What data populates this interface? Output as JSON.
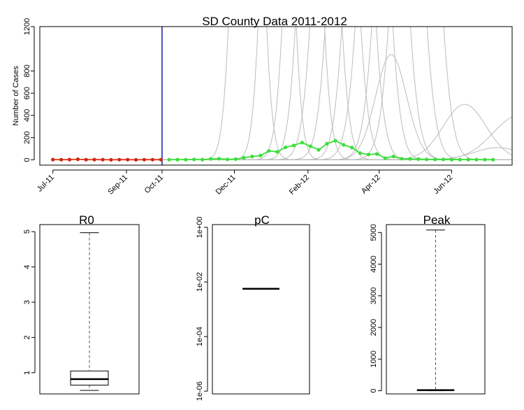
{
  "chart_data": [
    {
      "type": "line",
      "title": "SD County Data 2011-2012",
      "xlabel": "",
      "ylabel": "Number of Cases",
      "ylim": [
        0,
        1200
      ],
      "yticks": [
        "0",
        "200",
        "400",
        "600",
        "800",
        "1200"
      ],
      "yticks_values": [
        0,
        200,
        400,
        600,
        800,
        1200
      ],
      "xlim": [
        "2011-06-20",
        "2012-07-22"
      ],
      "xticks": [
        {
          "label": "Jul-11",
          "date": "2011-07-01"
        },
        {
          "label": "Sep-11",
          "date": "2011-09-01"
        },
        {
          "label": "Oct-11",
          "date": "2011-10-01"
        },
        {
          "label": "Dec-11",
          "date": "2011-12-01"
        },
        {
          "label": "Feb-12",
          "date": "2012-02-01"
        },
        {
          "label": "Apr-12",
          "date": "2012-04-01"
        },
        {
          "label": "Jun-12",
          "date": "2012-06-01"
        }
      ],
      "cutoff_line": {
        "date": "2011-10-01",
        "color": "#1a1aa8"
      },
      "series": [
        {
          "role": "observed-before-cutoff",
          "color": "#e8301c",
          "dot_color": "#cc2a10",
          "x": [
            "2011-07-01",
            "2011-07-08",
            "2011-07-15",
            "2011-07-22",
            "2011-07-29",
            "2011-08-05",
            "2011-08-12",
            "2011-08-19",
            "2011-08-26",
            "2011-09-02",
            "2011-09-09",
            "2011-09-16",
            "2011-09-23",
            "2011-09-30"
          ],
          "y": [
            2,
            1,
            2,
            5,
            1,
            2,
            1,
            0,
            1,
            1,
            0,
            1,
            1,
            1
          ]
        },
        {
          "role": "observed-after-cutoff",
          "color": "#39e03a",
          "dot_color": "#39e03a",
          "x": [
            "2011-10-07",
            "2011-10-14",
            "2011-10-21",
            "2011-10-28",
            "2011-11-04",
            "2011-11-11",
            "2011-11-18",
            "2011-11-25",
            "2011-12-02",
            "2011-12-09",
            "2011-12-16",
            "2011-12-23",
            "2011-12-30",
            "2012-01-06",
            "2012-01-13",
            "2012-01-20",
            "2012-01-27",
            "2012-02-03",
            "2012-02-10",
            "2012-02-17",
            "2012-02-24",
            "2012-03-02",
            "2012-03-09",
            "2012-03-16",
            "2012-03-23",
            "2012-03-30",
            "2012-04-06",
            "2012-04-13",
            "2012-04-20",
            "2012-04-27",
            "2012-05-04",
            "2012-05-11",
            "2012-05-18",
            "2012-05-25",
            "2012-06-01",
            "2012-06-08",
            "2012-06-15",
            "2012-06-22",
            "2012-06-29",
            "2012-07-06"
          ],
          "y": [
            1,
            2,
            1,
            3,
            2,
            8,
            10,
            4,
            6,
            18,
            30,
            38,
            80,
            72,
            112,
            130,
            155,
            122,
            90,
            145,
            172,
            135,
            110,
            60,
            48,
            52,
            15,
            30,
            10,
            8,
            6,
            4,
            3,
            3,
            2,
            2,
            2,
            2,
            1,
            1
          ]
        }
      ],
      "forecast_color": "#bcbcbc",
      "forecasts": [
        {
          "peak_date": "2011-12-12",
          "peak": 6000,
          "width_days": 9
        },
        {
          "peak_date": "2012-01-06",
          "peak": 6000,
          "width_days": 9
        },
        {
          "peak_date": "2012-01-28",
          "peak": 6000,
          "width_days": 10
        },
        {
          "peak_date": "2012-02-10",
          "peak": 6000,
          "width_days": 11
        },
        {
          "peak_date": "2012-02-24",
          "peak": 6000,
          "width_days": 12
        },
        {
          "peak_date": "2012-03-08",
          "peak": 6000,
          "width_days": 12
        },
        {
          "peak_date": "2012-03-22",
          "peak": 6000,
          "width_days": 12
        },
        {
          "peak_date": "2012-04-04",
          "peak": 6000,
          "width_days": 13
        },
        {
          "peak_date": "2012-04-11",
          "peak": 950,
          "width_days": 13
        },
        {
          "peak_date": "2012-04-18",
          "peak": 6000,
          "width_days": 13
        },
        {
          "peak_date": "2012-05-02",
          "peak": 6000,
          "width_days": 13
        },
        {
          "peak_date": "2012-06-12",
          "peak": 500,
          "width_days": 18
        },
        {
          "peak_date": "2012-07-28",
          "peak": 400,
          "width_days": 22
        },
        {
          "peak_date": "2012-07-10",
          "peak": 110,
          "width_days": 20
        }
      ]
    },
    {
      "type": "boxplot",
      "title": "R0",
      "ylim": [
        0.4,
        5.2
      ],
      "yticks": [
        "1",
        "2",
        "3",
        "4",
        "5"
      ],
      "yticks_values": [
        1,
        2,
        3,
        4,
        5
      ],
      "whisker_low": 0.5,
      "q1": 0.65,
      "median": 0.82,
      "q3": 1.05,
      "whisker_high": 4.97
    },
    {
      "type": "boxplot",
      "title": "pC",
      "scale": "log10",
      "ylim_log10": [
        -6.1,
        0.1
      ],
      "yticks": [
        "1e-06",
        "1e-04",
        "1e-02",
        "1e+00"
      ],
      "yticks_log10": [
        -6,
        -4,
        -2,
        0
      ],
      "median_log10": -2.25,
      "whisker_low_log10": -2.25,
      "whisker_high_log10": -2.25
    },
    {
      "type": "boxplot",
      "title": "Peak",
      "ylim": [
        -100,
        5250
      ],
      "yticks": [
        "0",
        "1000",
        "2000",
        "3000",
        "4000",
        "5000"
      ],
      "yticks_values": [
        0,
        1000,
        2000,
        3000,
        4000,
        5000
      ],
      "whisker_low": 0,
      "q1": 0,
      "median": 20,
      "q3": 20,
      "whisker_high": 5080
    }
  ]
}
